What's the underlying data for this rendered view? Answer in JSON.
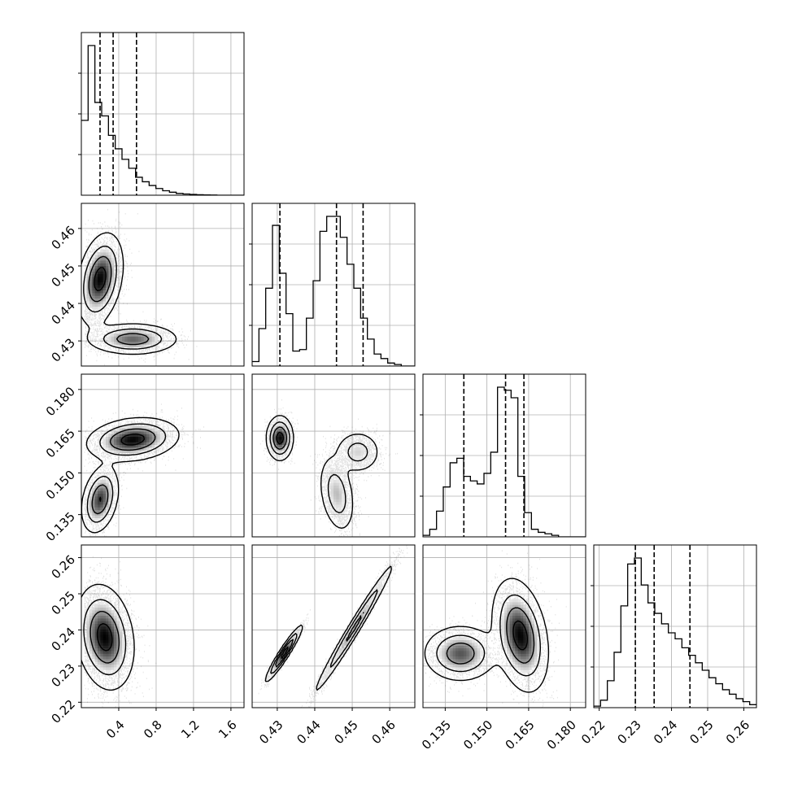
{
  "chart_data": {
    "type": "corner",
    "panel_kinds": "diagonal: 1D histogram with dashed quantile lines; lower triangle: 2D scatter with density contours",
    "grid": true,
    "parameters": [
      {
        "range": [
          0.0,
          1.74
        ],
        "ticks": [
          0.4,
          0.8,
          1.2,
          1.6
        ],
        "tick_labels": [
          "0.4",
          "0.8",
          "1.2",
          "1.6"
        ],
        "quantiles": [
          0.2,
          0.34,
          0.59
        ],
        "hist": {
          "start": 0.0,
          "width": 0.0725,
          "counts": [
            0.5,
            1.0,
            0.62,
            0.53,
            0.4,
            0.31,
            0.24,
            0.18,
            0.12,
            0.09,
            0.065,
            0.045,
            0.03,
            0.02,
            0.012,
            0.008,
            0.005,
            0.003,
            0.002,
            0.001,
            0.0,
            0.0,
            0.0,
            0.0
          ]
        }
      },
      {
        "range": [
          0.4233,
          0.4667
        ],
        "ticks": [
          0.43,
          0.44,
          0.45,
          0.46
        ],
        "tick_labels": [
          "0.43",
          "0.44",
          "0.45",
          "0.46"
        ],
        "quantiles": [
          0.4307,
          0.4458,
          0.4529
        ],
        "hist": {
          "start": 0.4233,
          "width": 0.0018083,
          "counts": [
            0.03,
            0.25,
            0.52,
            0.94,
            0.62,
            0.35,
            0.1,
            0.11,
            0.32,
            0.57,
            0.9,
            1.0,
            1.0,
            0.86,
            0.68,
            0.52,
            0.32,
            0.18,
            0.08,
            0.05,
            0.02,
            0.01,
            0.0,
            0.0
          ]
        }
      },
      {
        "range": [
          0.127,
          0.1855
        ],
        "ticks": [
          0.135,
          0.15,
          0.165,
          0.18
        ],
        "tick_labels": [
          "0.135",
          "0.150",
          "0.165",
          "0.180"
        ],
        "quantiles": [
          0.1417,
          0.1567,
          0.1633
        ],
        "hist": {
          "start": 0.127,
          "width": 0.0024375,
          "counts": [
            0.01,
            0.05,
            0.17,
            0.33,
            0.49,
            0.52,
            0.4,
            0.37,
            0.35,
            0.42,
            0.56,
            0.99,
            0.97,
            0.92,
            0.4,
            0.16,
            0.05,
            0.03,
            0.02,
            0.01,
            0.0,
            0.0,
            0.0,
            0.0
          ]
        }
      },
      {
        "range": [
          0.2185,
          0.2635
        ],
        "ticks": [
          0.22,
          0.23,
          0.24,
          0.25,
          0.26
        ],
        "tick_labels": [
          "0.22",
          "0.23",
          "0.24",
          "0.25",
          "0.26"
        ],
        "quantiles": [
          0.23,
          0.2352,
          0.2451
        ],
        "hist": {
          "start": 0.2185,
          "width": 0.001875,
          "counts": [
            0.01,
            0.05,
            0.18,
            0.37,
            0.68,
            0.96,
            1.0,
            0.82,
            0.7,
            0.63,
            0.56,
            0.5,
            0.46,
            0.4,
            0.35,
            0.3,
            0.25,
            0.2,
            0.16,
            0.12,
            0.09,
            0.06,
            0.04,
            0.02
          ]
        }
      }
    ],
    "joint_modes": {
      "p1_p0": [
        {
          "x": 0.2,
          "y": 0.4465,
          "sx": 0.11,
          "sy": 0.0055,
          "w": 0.65,
          "rho": 0.3
        },
        {
          "x": 0.55,
          "y": 0.4305,
          "sx": 0.22,
          "sy": 0.0019,
          "w": 0.35,
          "rho": 0.0
        }
      ],
      "p2_p0": [
        {
          "x": 0.2,
          "y": 0.1405,
          "sx": 0.09,
          "sy": 0.0055,
          "w": 0.35,
          "rho": 0.3
        },
        {
          "x": 0.55,
          "y": 0.162,
          "sx": 0.22,
          "sy": 0.0035,
          "w": 0.65,
          "rho": 0.2
        }
      ],
      "p3_p0": [
        {
          "x": 0.25,
          "y": 0.238,
          "sx": 0.14,
          "sy": 0.0065,
          "w": 1.0,
          "rho": -0.2
        }
      ],
      "p2_p1": [
        {
          "x": 0.4307,
          "y": 0.1625,
          "sx": 0.0016,
          "sy": 0.0036,
          "w": 0.35,
          "rho": 0.0
        },
        {
          "x": 0.4459,
          "y": 0.1425,
          "sx": 0.0022,
          "sy": 0.0065,
          "w": 0.4,
          "rho": -0.3
        },
        {
          "x": 0.4515,
          "y": 0.1575,
          "sx": 0.0028,
          "sy": 0.0035,
          "w": 0.25,
          "rho": 0.0
        }
      ],
      "p3_p1": [
        {
          "x": 0.4318,
          "y": 0.2335,
          "sx": 0.0022,
          "sy": 0.0035,
          "w": 0.35,
          "rho": 0.95
        },
        {
          "x": 0.4505,
          "y": 0.2405,
          "sx": 0.005,
          "sy": 0.0085,
          "w": 0.65,
          "rho": 0.985
        }
      ],
      "p3_p2": [
        {
          "x": 0.1405,
          "y": 0.2335,
          "sx": 0.006,
          "sy": 0.0035,
          "w": 0.35,
          "rho": 0.0
        },
        {
          "x": 0.162,
          "y": 0.2385,
          "sx": 0.0045,
          "sy": 0.007,
          "w": 0.65,
          "rho": -0.3
        }
      ]
    }
  }
}
